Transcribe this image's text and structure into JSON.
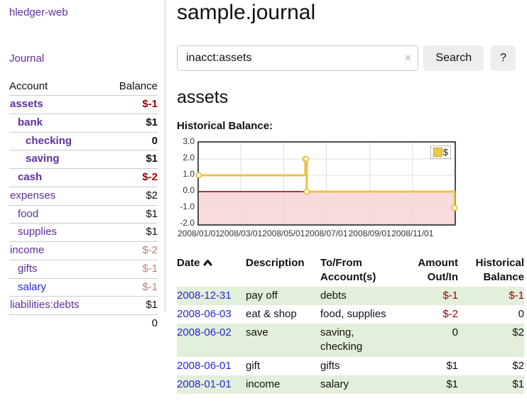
{
  "app": {
    "brand": "hledger-web",
    "nav_journal": "Journal"
  },
  "sidebar": {
    "accounts_header": {
      "account": "Account",
      "balance": "Balance"
    },
    "accounts": [
      {
        "name": "assets",
        "indent": 0,
        "bold": true,
        "link_style": "purple",
        "balance": "$-1",
        "balance_style": "neg-strong"
      },
      {
        "name": "bank",
        "indent": 1,
        "bold": true,
        "link_style": "purple",
        "balance": "$1",
        "balance_style": "pos"
      },
      {
        "name": "checking",
        "indent": 2,
        "bold": true,
        "link_style": "purple",
        "balance": "0",
        "balance_style": "pos"
      },
      {
        "name": "saving",
        "indent": 2,
        "bold": true,
        "link_style": "purple",
        "balance": "$1",
        "balance_style": "pos"
      },
      {
        "name": "cash",
        "indent": 1,
        "bold": true,
        "link_style": "purple",
        "balance": "$-2",
        "balance_style": "neg-strong"
      },
      {
        "name": "expenses",
        "indent": 0,
        "bold": false,
        "link_style": "purple",
        "balance": "$2",
        "balance_style": "pos"
      },
      {
        "name": "food",
        "indent": 1,
        "bold": false,
        "link_style": "purple",
        "balance": "$1",
        "balance_style": "pos"
      },
      {
        "name": "supplies",
        "indent": 1,
        "bold": false,
        "link_style": "purple",
        "balance": "$1",
        "balance_style": "pos"
      },
      {
        "name": "income",
        "indent": 0,
        "bold": false,
        "link_style": "purple",
        "balance": "$-2",
        "balance_style": "neg-muted"
      },
      {
        "name": "gifts",
        "indent": 1,
        "bold": false,
        "link_style": "purple",
        "balance": "$-1",
        "balance_style": "neg-muted"
      },
      {
        "name": "salary",
        "indent": 1,
        "bold": false,
        "link_style": "blue",
        "balance": "$-1",
        "balance_style": "neg-muted"
      },
      {
        "name": "liabilities:debts",
        "indent": 0,
        "bold": false,
        "link_style": "purple",
        "balance": "$1",
        "balance_style": "pos"
      }
    ],
    "total": "0"
  },
  "main": {
    "title": "sample.journal",
    "search": {
      "value": "inacct:assets",
      "clear_icon": "×",
      "button": "Search",
      "help_button": "?"
    },
    "account_heading": "assets",
    "chart_label": "Historical Balance:"
  },
  "chart_data": {
    "type": "line",
    "title": "Historical Balance",
    "interpolation": "step-after",
    "series": [
      {
        "name": "$",
        "color": "#e8c34a",
        "points": [
          [
            "2008-01-01",
            1
          ],
          [
            "2008-06-01",
            2
          ],
          [
            "2008-06-02",
            2
          ],
          [
            "2008-06-03",
            0
          ],
          [
            "2008-12-31",
            -1
          ]
        ]
      }
    ],
    "x_range": [
      "2008-01-01",
      "2008-12-31"
    ],
    "x_ticks": [
      "2008/01/01",
      "2008/03/01",
      "2008/05/01",
      "2008/07/01",
      "2008/09/01",
      "2008/11/01"
    ],
    "y_ticks": [
      3.0,
      2.0,
      1.0,
      0.0,
      -1.0,
      -2.0
    ],
    "ylim": [
      -2,
      3
    ],
    "grid": true,
    "negative_fill": "#fadbdb",
    "zero_line_color": "#8b0000",
    "legend": {
      "label": "$",
      "position": "top-right"
    }
  },
  "register": {
    "headers": {
      "date": "Date",
      "description": "Description",
      "account": "To/From\nAccount(s)",
      "amount": "Amount\nOut/In",
      "balance": "Historical\nBalance"
    },
    "rows": [
      {
        "date": "2008-12-31",
        "description": "pay off",
        "accounts": "debts",
        "amount": "$-1",
        "amount_neg": true,
        "balance": "$-1",
        "balance_neg": true
      },
      {
        "date": "2008-06-03",
        "description": "eat & shop",
        "accounts": "food, supplies",
        "amount": "$-2",
        "amount_neg": true,
        "balance": "0",
        "balance_neg": false
      },
      {
        "date": "2008-06-02",
        "description": "save",
        "accounts": "saving,\nchecking",
        "amount": "0",
        "amount_neg": false,
        "balance": "$2",
        "balance_neg": false
      },
      {
        "date": "2008-06-01",
        "description": "gift",
        "accounts": "gifts",
        "amount": "$1",
        "amount_neg": false,
        "balance": "$2",
        "balance_neg": false
      },
      {
        "date": "2008-01-01",
        "description": "income",
        "accounts": "salary",
        "amount": "$1",
        "amount_neg": false,
        "balance": "$1",
        "balance_neg": false
      }
    ]
  }
}
